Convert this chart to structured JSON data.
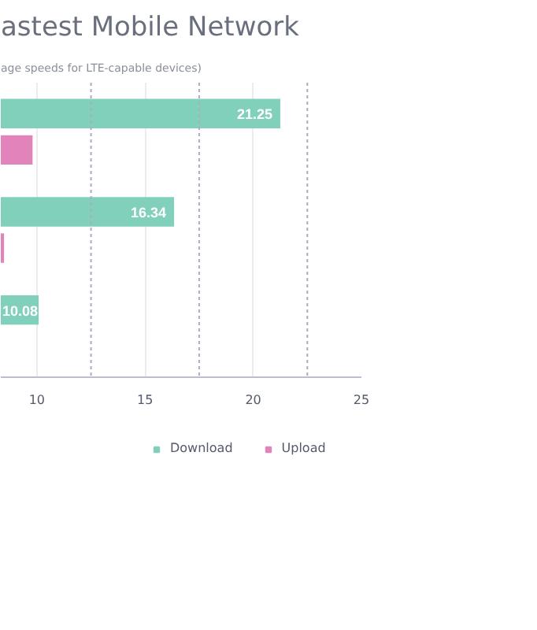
{
  "chart_data": {
    "type": "bar",
    "orientation": "horizontal",
    "title": "astest Mobile Network",
    "subtitle": "age speeds for LTE-capable devices)",
    "categories": [
      null,
      null,
      null
    ],
    "series": [
      {
        "name": "Download",
        "color": "#80d0bc",
        "values": [
          21.25,
          16.34,
          10.08
        ],
        "value_labels": [
          "21.25",
          "16.34",
          "10.08"
        ]
      },
      {
        "name": "Upload",
        "color": "#e283bb",
        "values": [
          9.8,
          8.48,
          null
        ],
        "value_labels": [
          null,
          null,
          null
        ]
      }
    ],
    "xlim": [
      8.33,
      25
    ],
    "xticks": [
      10,
      {
        "value": 12.5,
        "label": null
      },
      15,
      {
        "value": 17.5,
        "label": null
      },
      20,
      {
        "value": 22.5,
        "label": null
      },
      25
    ],
    "grid": "x",
    "legend": "bottom right"
  }
}
